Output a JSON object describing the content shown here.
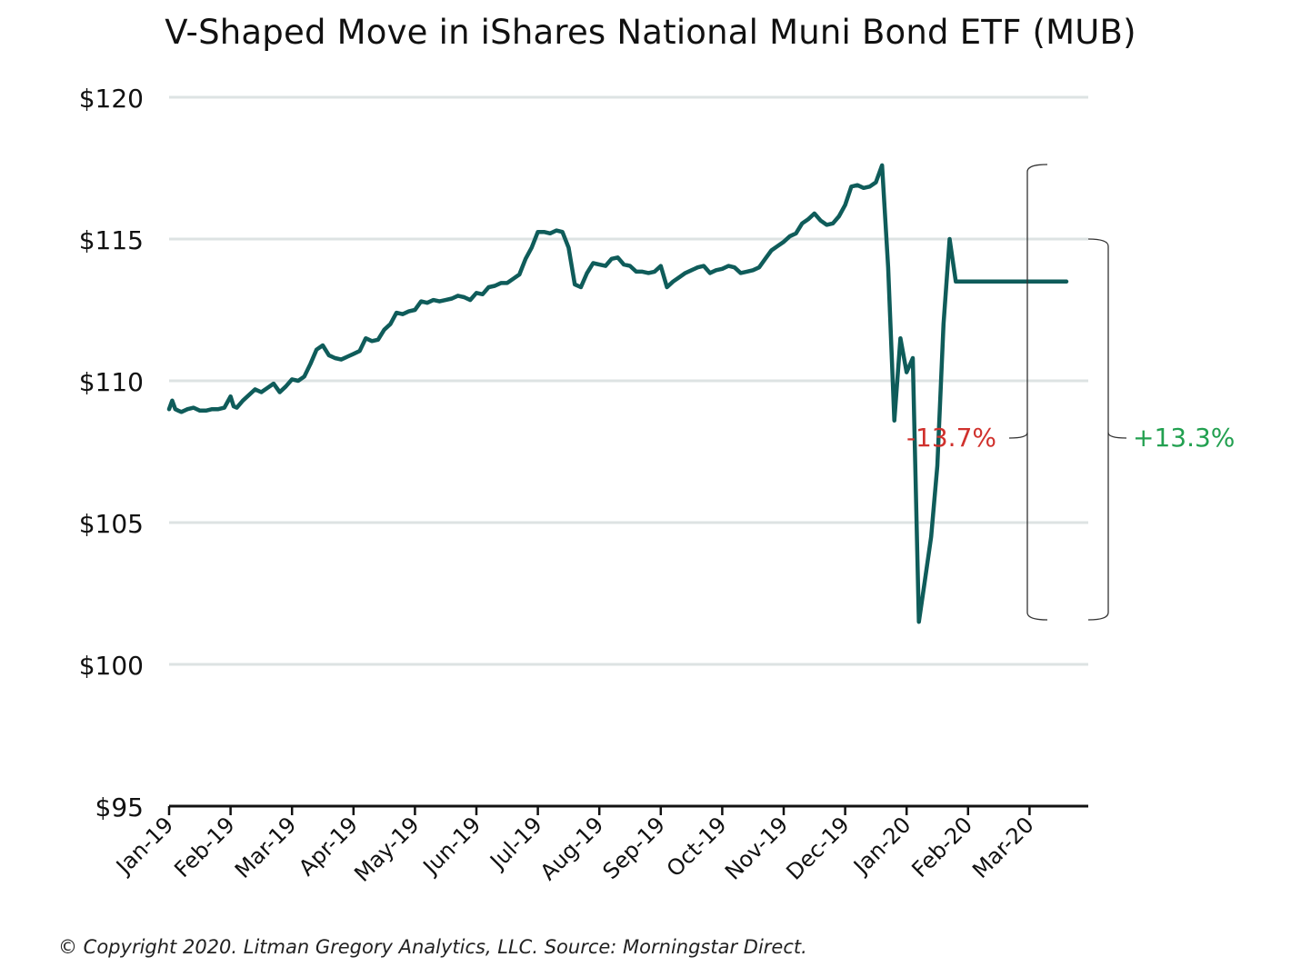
{
  "chart_data": {
    "type": "line",
    "title": "V-Shaped Move in iShares National Muni Bond ETF (MUB)",
    "xlabel": "",
    "ylabel": "",
    "ylim": [
      95,
      120
    ],
    "yticks": [
      {
        "value": 120,
        "label": "$120"
      },
      {
        "value": 115,
        "label": "$115"
      },
      {
        "value": 110,
        "label": "$110"
      },
      {
        "value": 105,
        "label": "$105"
      },
      {
        "value": 100,
        "label": "$100"
      },
      {
        "value": 95,
        "label": "$95"
      }
    ],
    "xticks": [
      "Jan-19",
      "Feb-19",
      "Mar-19",
      "Apr-19",
      "May-19",
      "Jun-19",
      "Jul-19",
      "Aug-19",
      "Sep-19",
      "Oct-19",
      "Nov-19",
      "Dec-19",
      "Jan-20",
      "Feb-20",
      "Mar-20"
    ],
    "grid": true,
    "line_color": "#0f5c5a",
    "series": [
      {
        "x": [
          0,
          0.05,
          0.1,
          0.15,
          0.2,
          0.3,
          0.4,
          0.5,
          0.6,
          0.7,
          0.8,
          0.9,
          1.0,
          1.05,
          1.1,
          1.2,
          1.3,
          1.4,
          1.5,
          1.6,
          1.7,
          1.8,
          1.9,
          2.0,
          2.1,
          2.2,
          2.3,
          2.4,
          2.5,
          2.6,
          2.7,
          2.8,
          2.9,
          3.0,
          3.1,
          3.2,
          3.3,
          3.4,
          3.5,
          3.6,
          3.7,
          3.8,
          3.9,
          4.0,
          4.1,
          4.2,
          4.3,
          4.4,
          4.5,
          4.6,
          4.7,
          4.8,
          4.9,
          5.0,
          5.1,
          5.2,
          5.3,
          5.4,
          5.5,
          5.6,
          5.7,
          5.8,
          5.9,
          6.0,
          6.1,
          6.2,
          6.3,
          6.4,
          6.5,
          6.6,
          6.7,
          6.8,
          6.9,
          7.0,
          7.1,
          7.2,
          7.3,
          7.4,
          7.5,
          7.6,
          7.7,
          7.8,
          7.9,
          8.0,
          8.1,
          8.2,
          8.3,
          8.4,
          8.5,
          8.6,
          8.7,
          8.8,
          8.9,
          9.0,
          9.1,
          9.2,
          9.3,
          9.4,
          9.5,
          9.6,
          9.7,
          9.8,
          9.9,
          10.0,
          10.1,
          10.2,
          10.3,
          10.4,
          10.5,
          10.6,
          10.7,
          10.8,
          10.9,
          11.0,
          11.1,
          11.2,
          11.3,
          11.4,
          11.5,
          11.6,
          11.7,
          11.8,
          11.9,
          12.0,
          12.1,
          12.2,
          12.3,
          12.4,
          12.5,
          12.6,
          12.7,
          12.8,
          12.9,
          13.0,
          13.1,
          13.2,
          13.3,
          13.4,
          13.5,
          13.6,
          13.7,
          13.8,
          13.9,
          14.0,
          14.08,
          14.15,
          14.22,
          14.27,
          14.3,
          14.35,
          14.38,
          14.4,
          14.45,
          14.52,
          14.6,
          14.65,
          14.72,
          14.8,
          14.86,
          14.9,
          14.93
        ],
        "y": [
          109.0,
          109.3,
          109.0,
          108.95,
          108.9,
          109.0,
          109.05,
          108.95,
          108.95,
          109.0,
          109.0,
          109.05,
          109.45,
          109.1,
          109.05,
          109.3,
          109.5,
          109.7,
          109.6,
          109.75,
          109.9,
          109.6,
          109.8,
          110.05,
          110.0,
          110.15,
          110.6,
          111.1,
          111.25,
          110.9,
          110.8,
          110.75,
          110.85,
          110.95,
          111.05,
          111.5,
          111.4,
          111.45,
          111.8,
          112.0,
          112.4,
          112.35,
          112.45,
          112.5,
          112.8,
          112.75,
          112.85,
          112.8,
          112.85,
          112.9,
          113.0,
          112.95,
          112.85,
          113.1,
          113.05,
          113.3,
          113.35,
          113.45,
          113.45,
          113.6,
          113.75,
          114.3,
          114.7,
          115.25,
          115.25,
          115.2,
          115.3,
          115.25,
          114.7,
          113.4,
          113.3,
          113.8,
          114.15,
          114.1,
          114.05,
          114.3,
          114.35,
          114.1,
          114.05,
          113.85,
          113.85,
          113.8,
          113.85,
          114.05,
          113.3,
          113.5,
          113.65,
          113.8,
          113.9,
          114.0,
          114.05,
          113.8,
          113.9,
          113.95,
          114.05,
          114.0,
          113.8,
          113.85,
          113.9,
          114.0,
          114.3,
          114.6,
          114.75,
          114.9,
          115.1,
          115.2,
          115.55,
          115.7,
          115.9,
          115.65,
          115.5,
          115.55,
          115.8,
          116.2,
          116.85,
          116.9,
          116.8,
          116.85,
          117.0,
          117.6,
          114.0,
          108.6,
          111.5,
          110.3,
          110.8,
          101.5,
          103.0,
          104.5,
          107.0,
          112.0,
          115.0,
          113.5,
          113.5,
          113.5,
          113.5,
          113.5,
          113.5,
          113.5,
          113.5,
          113.5,
          113.5,
          113.5,
          113.5,
          113.5,
          113.5,
          113.5,
          113.5,
          113.5,
          113.5,
          113.5,
          113.5,
          113.5,
          113.5,
          113.5,
          113.5,
          113.5,
          113.5,
          113.5,
          113.5,
          113.5,
          113.5
        ]
      }
    ],
    "annotations": [
      {
        "text": "-13.7%",
        "color": "#d0312d",
        "from": 117.6,
        "to": 101.5
      },
      {
        "text": "+13.3%",
        "color": "#22a050",
        "from": 101.5,
        "to": 115.0
      }
    ]
  },
  "footer": {
    "copyright": "© Copyright 2020. Litman Gregory Analytics, LLC. Source: Morningstar Direct."
  }
}
